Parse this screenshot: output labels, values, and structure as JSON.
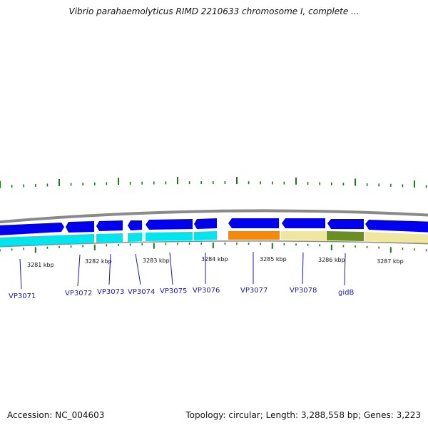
{
  "title": "Vibrio parahaemolyticus RIMD 2210633 chromosome I, complete ...",
  "footer": {
    "accession": "Accession: NC_004603",
    "summary": "Topology: circular; Length: 3,288,558 bp; Genes: 3,223"
  },
  "colors": {
    "backbone": "#8a8a8a",
    "forward_strand_gene": "#0000ee",
    "cds_band": "#00e5ee",
    "orange_feature": "#f58a0a",
    "khaki_feature": "#efe6a0",
    "olive_feature": "#6b8e23",
    "gc_ticks": "#1a7a1a",
    "label": "#1a1aa8"
  },
  "kbp_labels": [
    "3281 kbp",
    "3282 kbp",
    "3283 kbp",
    "3284 kbp",
    "3285 kbp",
    "3286 kbp",
    "3287 kbp"
  ],
  "gene_labels": [
    "VP3071",
    "VP3072",
    "VP3073",
    "VP3074",
    "VP3075",
    "VP3076",
    "VP3077",
    "VP3078",
    "gidB"
  ]
}
